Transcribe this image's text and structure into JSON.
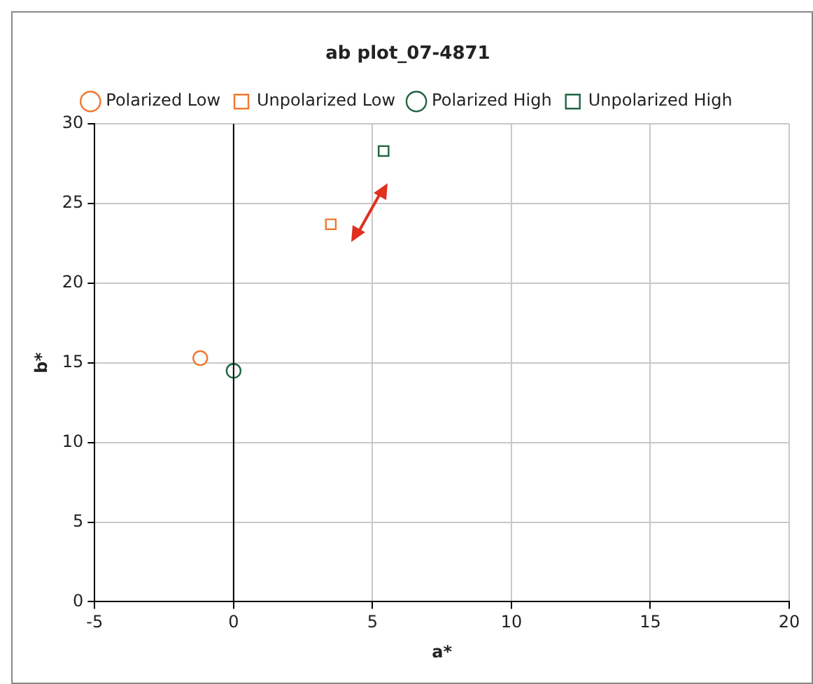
{
  "chart_data": {
    "type": "scatter",
    "title": "ab plot_07-4871",
    "xlabel": "a*",
    "ylabel": "b*",
    "series": [
      {
        "name": "Polarized Low",
        "color": "#f07830",
        "marker": "circle",
        "x": [
          -1.2
        ],
        "values": [
          15.3
        ]
      },
      {
        "name": "Unpolarized Low",
        "color": "#f07830",
        "marker": "square",
        "x": [
          3.5
        ],
        "values": [
          23.7
        ]
      },
      {
        "name": "Polarized High",
        "color": "#1e6440",
        "marker": "circle",
        "x": [
          0
        ],
        "values": [
          14.5
        ]
      },
      {
        "name": "Unpolarized High",
        "color": "#1e6440",
        "marker": "square",
        "x": [
          5.4
        ],
        "values": [
          28.3
        ]
      }
    ],
    "xlim": [
      -5,
      20
    ],
    "xticks": [
      -5,
      0,
      5,
      10,
      15,
      20
    ],
    "ylim": [
      0,
      30
    ],
    "yticks": [
      0,
      5,
      10,
      15,
      20,
      25,
      30
    ],
    "ref_lines": [
      {
        "axis": "x",
        "value": 0,
        "color": "#000000"
      }
    ],
    "grid": true,
    "legend": "top"
  }
}
